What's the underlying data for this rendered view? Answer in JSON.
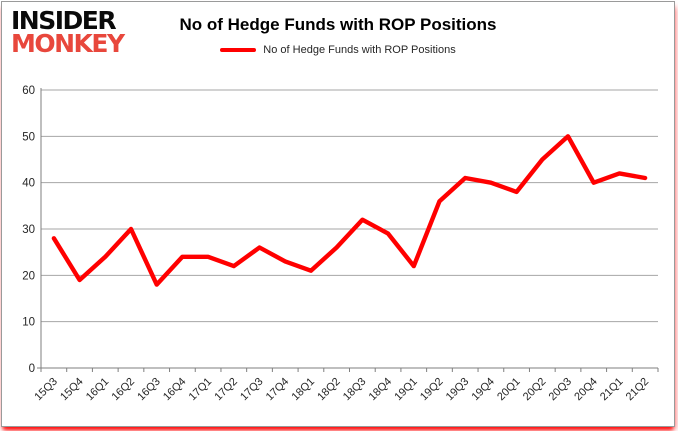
{
  "logo": {
    "line1": "INSIDER",
    "line2": "MONKEY"
  },
  "header": {
    "title": "No of Hedge Funds with ROP Positions"
  },
  "legend": {
    "label": "No of Hedge Funds with ROP Positions",
    "color": "#ff0000"
  },
  "chart_data": {
    "type": "line",
    "title": "No of Hedge Funds with ROP Positions",
    "categories": [
      "15Q3",
      "15Q4",
      "16Q1",
      "16Q2",
      "16Q3",
      "16Q4",
      "17Q1",
      "17Q2",
      "17Q3",
      "17Q4",
      "18Q1",
      "18Q2",
      "18Q3",
      "18Q4",
      "19Q1",
      "19Q2",
      "19Q3",
      "19Q4",
      "20Q1",
      "20Q2",
      "20Q3",
      "20Q4",
      "21Q1",
      "21Q2"
    ],
    "values": [
      28,
      19,
      24,
      30,
      18,
      24,
      24,
      22,
      26,
      23,
      21,
      26,
      32,
      29,
      22,
      36,
      41,
      40,
      38,
      45,
      50,
      40,
      42,
      41
    ],
    "series_name": "No of Hedge Funds with ROP Positions",
    "xlabel": "",
    "ylabel": "",
    "ylim": [
      0,
      60
    ],
    "ytick_interval": 10,
    "yticks": [
      0,
      10,
      20,
      30,
      40,
      50,
      60
    ],
    "grid": true,
    "legend_position": "top",
    "line_color": "#ff0000",
    "grid_color": "#a6a6a6",
    "axis_color": "#7f7f7f",
    "label_color": "#262626"
  }
}
